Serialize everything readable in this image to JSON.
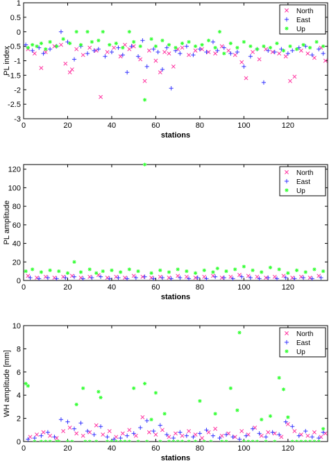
{
  "colors": {
    "north": "#ff33a0",
    "east": "#3333ff",
    "up": "#33ff33"
  },
  "chart_data": [
    {
      "type": "scatter",
      "xlabel": "stations",
      "ylabel": "PL index",
      "xlim": [
        0,
        138
      ],
      "ylim": [
        -3,
        1
      ],
      "xticks": [
        "0",
        "20",
        "40",
        "60",
        "80",
        "100",
        "120"
      ],
      "xtick_values": [
        0,
        20,
        40,
        60,
        80,
        100,
        120
      ],
      "yticks": [
        "-3",
        "-2.5",
        "-2",
        "-1.5",
        "-1",
        "-0.5",
        "0",
        "0.5",
        "1"
      ],
      "ytick_values": [
        -3,
        -2.5,
        -2,
        -1.5,
        -1,
        -0.5,
        0,
        0.5,
        1
      ],
      "legend": [
        "North",
        "East",
        "Up"
      ],
      "legend_position": "top-right",
      "series": [
        {
          "name": "North",
          "marker": "x",
          "x": [
            2,
            5,
            8,
            10,
            14,
            17,
            19,
            21,
            22,
            24,
            27,
            30,
            33,
            35,
            38,
            41,
            44,
            46,
            48,
            50,
            53,
            55,
            57,
            60,
            62,
            64,
            66,
            68,
            70,
            72,
            75,
            78,
            81,
            84,
            87,
            90,
            93,
            96,
            99,
            101,
            104,
            107,
            110,
            113,
            116,
            119,
            121,
            123,
            126,
            129,
            132,
            135,
            137
          ],
          "y": [
            -0.6,
            -0.75,
            -1.25,
            -0.7,
            -0.5,
            -0.45,
            -1.1,
            -1.4,
            -1.3,
            -0.6,
            -0.8,
            -0.55,
            -0.65,
            -2.25,
            -0.7,
            -0.55,
            -0.85,
            -0.45,
            -0.6,
            -0.5,
            -0.95,
            -1.7,
            -0.65,
            -1.0,
            -1.4,
            -0.7,
            -0.75,
            -1.2,
            -0.6,
            -0.55,
            -0.8,
            -0.65,
            -0.6,
            -0.7,
            -0.75,
            -0.5,
            -0.65,
            -0.8,
            -1.05,
            -1.6,
            -0.7,
            -0.95,
            -0.6,
            -0.7,
            -0.75,
            -0.85,
            -1.7,
            -1.55,
            -0.65,
            -0.75,
            -0.9,
            -0.55,
            -1.0
          ]
        },
        {
          "name": "East",
          "marker": "+",
          "x": [
            1,
            4,
            7,
            9,
            12,
            15,
            17,
            20,
            23,
            26,
            29,
            32,
            34,
            37,
            40,
            43,
            45,
            47,
            49,
            52,
            54,
            56,
            59,
            61,
            63,
            65,
            67,
            69,
            71,
            74,
            77,
            80,
            83,
            86,
            88,
            91,
            94,
            97,
            100,
            103,
            106,
            109,
            111,
            114,
            117,
            120,
            122,
            125,
            128,
            131,
            134,
            136
          ],
          "y": [
            -0.45,
            -0.65,
            -0.55,
            -0.75,
            -0.6,
            -0.5,
            0.0,
            -0.35,
            -0.95,
            -0.5,
            -0.75,
            -0.65,
            -0.6,
            -0.85,
            -0.7,
            -0.55,
            -0.8,
            -1.4,
            -0.5,
            -0.85,
            -0.3,
            -1.2,
            -0.6,
            -0.7,
            -1.3,
            -0.55,
            -1.95,
            -0.65,
            -0.75,
            -0.5,
            -0.8,
            -0.6,
            -0.7,
            -0.35,
            -0.65,
            -0.55,
            -0.75,
            -0.7,
            -1.2,
            -0.85,
            -0.6,
            -1.75,
            -0.65,
            -0.7,
            -0.6,
            -0.75,
            -0.65,
            -0.55,
            -0.5,
            -0.8,
            -0.6,
            -0.75
          ]
        },
        {
          "name": "Up",
          "marker": "*",
          "x": [
            2,
            4,
            6,
            8,
            10,
            12,
            15,
            18,
            21,
            24,
            26,
            29,
            31,
            34,
            36,
            39,
            42,
            45,
            48,
            50,
            53,
            55,
            58,
            60,
            63,
            66,
            69,
            72,
            75,
            78,
            81,
            84,
            87,
            89,
            91,
            94,
            97,
            100,
            103,
            106,
            109,
            112,
            115,
            118,
            121,
            124,
            127,
            130,
            133,
            136
          ],
          "y": [
            -0.55,
            -0.45,
            -0.5,
            -0.4,
            -0.6,
            -0.35,
            -0.5,
            -0.25,
            -0.4,
            0.0,
            -0.45,
            0.0,
            -0.35,
            -0.3,
            0.0,
            -0.45,
            -0.4,
            -0.55,
            0.0,
            -0.35,
            -0.5,
            -2.35,
            -0.25,
            -0.5,
            -0.3,
            -0.45,
            -0.55,
            -0.4,
            -0.35,
            -0.5,
            -0.45,
            -0.3,
            -0.55,
            0.0,
            -0.75,
            -0.4,
            -0.55,
            -0.35,
            -0.5,
            -0.6,
            -0.5,
            -0.55,
            -0.4,
            -0.65,
            -0.5,
            -0.6,
            -0.45,
            -0.55,
            -0.35,
            -0.5
          ]
        }
      ]
    },
    {
      "type": "scatter",
      "xlabel": "stations",
      "ylabel": "PL amplitude",
      "xlim": [
        0,
        138
      ],
      "ylim": [
        0,
        125
      ],
      "xticks": [
        "0",
        "20",
        "40",
        "60",
        "80",
        "100",
        "120"
      ],
      "xtick_values": [
        0,
        20,
        40,
        60,
        80,
        100,
        120
      ],
      "yticks": [
        "0",
        "20",
        "40",
        "60",
        "80",
        "100",
        "120"
      ],
      "ytick_values": [
        0,
        20,
        40,
        60,
        80,
        100,
        120
      ],
      "legend": [
        "North",
        "East",
        "Up"
      ],
      "legend_position": "top-right",
      "series": [
        {
          "name": "North",
          "marker": "x",
          "x": [
            2,
            6,
            10,
            14,
            18,
            22,
            26,
            30,
            34,
            38,
            42,
            46,
            50,
            54,
            58,
            62,
            66,
            70,
            74,
            78,
            82,
            86,
            90,
            94,
            98,
            102,
            106,
            110,
            114,
            118,
            122,
            126,
            130,
            134
          ],
          "y": [
            5,
            3,
            4,
            3,
            4,
            5,
            3,
            4,
            6,
            3,
            4,
            3,
            5,
            4,
            3,
            4,
            3,
            5,
            4,
            3,
            4,
            5,
            3,
            4,
            6,
            5,
            4,
            3,
            4,
            5,
            3,
            4,
            3,
            5
          ]
        },
        {
          "name": "East",
          "marker": "+",
          "x": [
            3,
            7,
            11,
            15,
            19,
            23,
            27,
            31,
            35,
            39,
            43,
            47,
            51,
            55,
            59,
            63,
            67,
            71,
            75,
            79,
            83,
            87,
            91,
            95,
            99,
            103,
            107,
            111,
            115,
            119,
            123,
            127,
            131,
            135
          ],
          "y": [
            3,
            2,
            3,
            2,
            3,
            4,
            2,
            3,
            4,
            2,
            3,
            2,
            3,
            4,
            2,
            3,
            2,
            3,
            2,
            3,
            2,
            4,
            3,
            2,
            4,
            3,
            2,
            3,
            2,
            3,
            2,
            3,
            2,
            3
          ]
        },
        {
          "name": "Up",
          "marker": "*",
          "x": [
            1,
            4,
            8,
            12,
            16,
            20,
            23,
            26,
            30,
            33,
            36,
            40,
            44,
            48,
            52,
            55,
            58,
            62,
            66,
            70,
            74,
            78,
            82,
            86,
            88,
            92,
            96,
            100,
            104,
            108,
            112,
            116,
            120,
            124,
            128,
            132,
            136
          ],
          "y": [
            10,
            12,
            9,
            11,
            10,
            8,
            20,
            9,
            12,
            8,
            10,
            11,
            9,
            12,
            10,
            125,
            8,
            11,
            9,
            12,
            10,
            8,
            11,
            9,
            13,
            10,
            12,
            15,
            11,
            9,
            14,
            12,
            8,
            11,
            9,
            12,
            10
          ]
        }
      ]
    },
    {
      "type": "scatter",
      "xlabel": "stations",
      "ylabel": "WH amplitude [mm]",
      "xlim": [
        0,
        138
      ],
      "ylim": [
        0,
        10
      ],
      "xticks": [
        "0",
        "20",
        "40",
        "60",
        "80",
        "100",
        "120"
      ],
      "xtick_values": [
        0,
        20,
        40,
        60,
        80,
        100,
        120
      ],
      "yticks": [
        "0",
        "2",
        "4",
        "6",
        "8",
        "10"
      ],
      "ytick_values": [
        0,
        2,
        4,
        6,
        8,
        10
      ],
      "legend": [
        "North",
        "East",
        "Up"
      ],
      "legend_position": "top-right",
      "series": [
        {
          "name": "North",
          "marker": "x",
          "x": [
            3,
            6,
            9,
            12,
            15,
            18,
            21,
            24,
            27,
            30,
            33,
            36,
            39,
            42,
            45,
            48,
            51,
            54,
            57,
            60,
            63,
            66,
            69,
            72,
            75,
            78,
            81,
            84,
            87,
            90,
            93,
            96,
            99,
            102,
            105,
            108,
            111,
            114,
            117,
            120,
            123,
            126,
            129,
            132,
            135,
            137
          ],
          "y": [
            0.4,
            0.6,
            0.8,
            0.5,
            0.3,
            0.9,
            1.2,
            0.7,
            0.5,
            0.8,
            1.4,
            0.6,
            0.9,
            0.4,
            0.7,
            1.0,
            0.5,
            2.1,
            0.8,
            0.6,
            1.0,
            0.4,
            0.7,
            0.5,
            0.9,
            0.6,
            0.3,
            0.8,
            1.1,
            0.5,
            0.7,
            0.4,
            0.9,
            0.6,
            1.2,
            0.5,
            0.8,
            0.7,
            0.4,
            1.5,
            0.9,
            0.6,
            0.5,
            0.8,
            0.4,
            0.7
          ]
        },
        {
          "name": "East",
          "marker": "+",
          "x": [
            2,
            5,
            8,
            11,
            14,
            17,
            20,
            23,
            26,
            29,
            32,
            35,
            38,
            41,
            44,
            47,
            50,
            53,
            56,
            59,
            62,
            65,
            68,
            71,
            74,
            77,
            80,
            83,
            86,
            89,
            92,
            95,
            98,
            101,
            104,
            107,
            110,
            113,
            116,
            119,
            122,
            125,
            128,
            131,
            134,
            136
          ],
          "y": [
            0.2,
            0.3,
            0.5,
            0.8,
            0.4,
            1.9,
            1.7,
            1.1,
            1.6,
            0.9,
            0.6,
            1.3,
            0.4,
            0.2,
            0.3,
            0.5,
            0.7,
            1.2,
            1.8,
            0.9,
            1.4,
            0.6,
            0.3,
            0.8,
            0.5,
            0.4,
            0.7,
            1.0,
            0.5,
            0.3,
            0.6,
            0.4,
            0.2,
            0.5,
            1.1,
            0.7,
            0.4,
            0.8,
            0.6,
            1.7,
            1.3,
            0.5,
            0.9,
            0.4,
            0.3,
            0.8
          ]
        },
        {
          "name": "Up",
          "marker": "*",
          "x": [
            1,
            2,
            8,
            12,
            16,
            20,
            24,
            27,
            30,
            34,
            35,
            40,
            44,
            48,
            50,
            52,
            55,
            58,
            60,
            64,
            68,
            70,
            75,
            80,
            85,
            87,
            90,
            94,
            97,
            98,
            100,
            104,
            108,
            112,
            116,
            118,
            120,
            124,
            128,
            132,
            136,
            5,
            10,
            15,
            22,
            28,
            33,
            38,
            42,
            46,
            56,
            62,
            66,
            72,
            78,
            82,
            92,
            102,
            106,
            110,
            114,
            122,
            126,
            130,
            134
          ],
          "y": [
            5.0,
            4.8,
            0.0,
            0.0,
            0.0,
            0.0,
            3.2,
            4.6,
            0.0,
            4.3,
            3.8,
            0.0,
            0.0,
            0.0,
            4.6,
            0.0,
            5.0,
            1.9,
            4.2,
            2.4,
            0.0,
            0.0,
            0.0,
            3.5,
            0.0,
            2.4,
            0.0,
            4.6,
            2.7,
            9.4,
            0.0,
            0.0,
            1.9,
            2.2,
            5.5,
            4.5,
            2.1,
            0.0,
            0.0,
            0.0,
            1.1,
            0.0,
            0.0,
            0.0,
            0.0,
            0.0,
            0.0,
            0.0,
            0.0,
            0.0,
            0.0,
            0.0,
            0.0,
            0.0,
            0.0,
            0.0,
            0.0,
            0.0,
            0.0,
            0.0,
            0.0,
            0.0,
            0.0,
            0.0,
            0.0
          ]
        }
      ]
    }
  ]
}
